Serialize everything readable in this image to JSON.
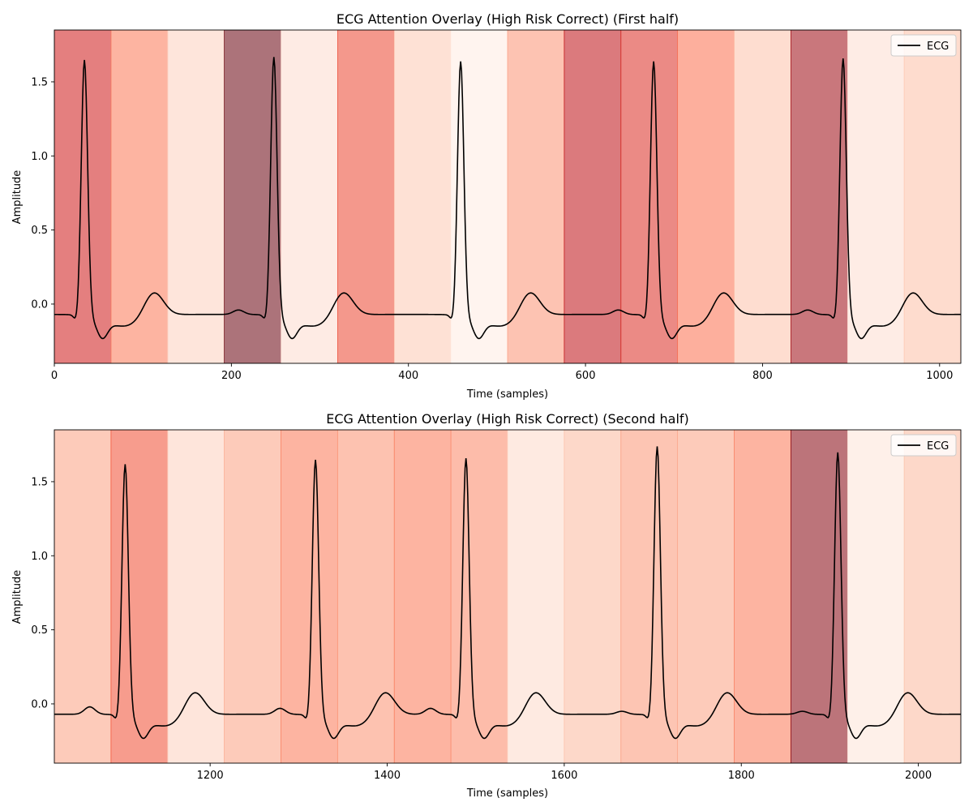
{
  "chart_data": [
    {
      "type": "line",
      "title": "ECG Attention Overlay (High Risk Correct) (First half)",
      "xlabel": "Time (samples)",
      "ylabel": "Amplitude",
      "xlim": [
        0,
        1024
      ],
      "ylim": [
        -0.4,
        1.85
      ],
      "xticks": [
        0,
        200,
        400,
        600,
        800,
        1000
      ],
      "yticks": [
        0.0,
        0.5,
        1.0,
        1.5
      ],
      "legend": {
        "position": "top-right",
        "entries": [
          "ECG"
        ]
      },
      "attention_segments": [
        {
          "start": 0,
          "end": 64,
          "weight": 0.72
        },
        {
          "start": 64,
          "end": 128,
          "weight": 0.42
        },
        {
          "start": 128,
          "end": 192,
          "weight": 0.13
        },
        {
          "start": 192,
          "end": 256,
          "weight": 1.0
        },
        {
          "start": 256,
          "end": 320,
          "weight": 0.09
        },
        {
          "start": 320,
          "end": 384,
          "weight": 0.58
        },
        {
          "start": 384,
          "end": 448,
          "weight": 0.16
        },
        {
          "start": 448,
          "end": 512,
          "weight": 0.03
        },
        {
          "start": 512,
          "end": 576,
          "weight": 0.34
        },
        {
          "start": 576,
          "end": 640,
          "weight": 0.78
        },
        {
          "start": 640,
          "end": 704,
          "weight": 0.66
        },
        {
          "start": 704,
          "end": 768,
          "weight": 0.44
        },
        {
          "start": 768,
          "end": 832,
          "weight": 0.19
        },
        {
          "start": 832,
          "end": 896,
          "weight": 0.86
        },
        {
          "start": 896,
          "end": 960,
          "weight": 0.08
        },
        {
          "start": 960,
          "end": 1024,
          "weight": 0.2
        }
      ],
      "series": [
        {
          "name": "ECG",
          "color": "#000000",
          "baseline": -0.07,
          "beats": [
            {
              "r": 34,
              "r_amp": 1.66,
              "p": 0.0
            },
            {
              "r": 248,
              "r_amp": 1.68,
              "p": 0.03
            },
            {
              "r": 459,
              "r_amp": 1.65,
              "p": 0.0
            },
            {
              "r": 677,
              "r_amp": 1.65,
              "p": 0.03
            },
            {
              "r": 891,
              "r_amp": 1.67,
              "p": 0.03
            }
          ]
        }
      ]
    },
    {
      "type": "line",
      "title": "ECG Attention Overlay (High Risk Correct) (Second half)",
      "xlabel": "Time (samples)",
      "ylabel": "Amplitude",
      "xlim": [
        1024,
        2048
      ],
      "ylim": [
        -0.4,
        1.85
      ],
      "xticks": [
        1200,
        1400,
        1600,
        1800,
        2000
      ],
      "yticks": [
        0.0,
        0.5,
        1.0,
        1.5
      ],
      "legend": {
        "position": "top-right",
        "entries": [
          "ECG"
        ]
      },
      "attention_segments": [
        {
          "start": 1024,
          "end": 1088,
          "weight": 0.3
        },
        {
          "start": 1088,
          "end": 1152,
          "weight": 0.55
        },
        {
          "start": 1152,
          "end": 1216,
          "weight": 0.13
        },
        {
          "start": 1216,
          "end": 1280,
          "weight": 0.3
        },
        {
          "start": 1280,
          "end": 1344,
          "weight": 0.42
        },
        {
          "start": 1344,
          "end": 1408,
          "weight": 0.35
        },
        {
          "start": 1408,
          "end": 1472,
          "weight": 0.42
        },
        {
          "start": 1472,
          "end": 1536,
          "weight": 0.38
        },
        {
          "start": 1536,
          "end": 1600,
          "weight": 0.1
        },
        {
          "start": 1600,
          "end": 1664,
          "weight": 0.22
        },
        {
          "start": 1664,
          "end": 1728,
          "weight": 0.33
        },
        {
          "start": 1728,
          "end": 1792,
          "weight": 0.3
        },
        {
          "start": 1792,
          "end": 1856,
          "weight": 0.42
        },
        {
          "start": 1856,
          "end": 1920,
          "weight": 0.92
        },
        {
          "start": 1920,
          "end": 1984,
          "weight": 0.06
        },
        {
          "start": 1984,
          "end": 2048,
          "weight": 0.22
        }
      ],
      "series": [
        {
          "name": "ECG",
          "color": "#000000",
          "baseline": -0.07,
          "beats": [
            {
              "r": 1104,
              "r_amp": 1.63,
              "p": 0.05
            },
            {
              "r": 1319,
              "r_amp": 1.66,
              "p": 0.04
            },
            {
              "r": 1489,
              "r_amp": 1.67,
              "p": 0.04
            },
            {
              "r": 1705,
              "r_amp": 1.75,
              "p": 0.02
            },
            {
              "r": 1909,
              "r_amp": 1.71,
              "p": 0.02
            }
          ]
        }
      ]
    }
  ]
}
